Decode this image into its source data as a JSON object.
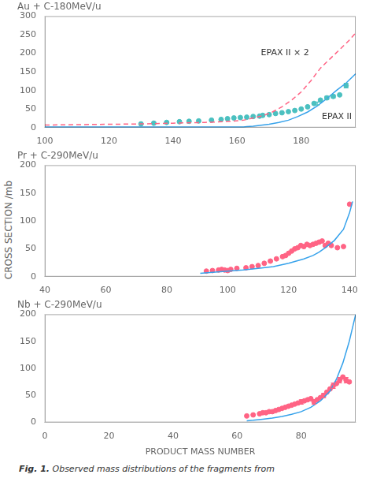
{
  "ylabel": "CROSS SECTION /mb",
  "caption": [
    "Fig. 1.",
    "Observed mass distributions of the fragments from"
  ],
  "chart_data": [
    {
      "type": "line",
      "title": "Au + C-180MeV/u",
      "grid": false,
      "xlim": [
        100,
        197
      ],
      "xticks": [
        100,
        120,
        140,
        160,
        180
      ],
      "ylim": [
        0,
        300
      ],
      "yticks": [
        0,
        50,
        100,
        150,
        200,
        250,
        300
      ],
      "annotations": [
        "EPAX II × 2",
        "EPAX II"
      ],
      "series": [
        {
          "type": "line",
          "line_style": "solid",
          "marker": "none",
          "x": [
            100,
            162,
            163,
            165,
            167,
            170,
            173,
            176,
            179,
            182,
            185,
            188,
            191,
            194,
            197
          ],
          "values": [
            1.5,
            1.8,
            2.5,
            4,
            6,
            9,
            14,
            20,
            30,
            42,
            58,
            78,
            100,
            120,
            145
          ]
        },
        {
          "type": "line",
          "line_style": "dashed",
          "marker": "none",
          "x": [
            100,
            110,
            120,
            130,
            140,
            150,
            158,
            162,
            165,
            168,
            171,
            174,
            177,
            180,
            183,
            186,
            189,
            192,
            195,
            197
          ],
          "values": [
            7,
            8,
            9,
            10,
            12,
            14,
            17,
            20,
            26,
            32,
            42,
            56,
            74,
            96,
            126,
            160,
            185,
            210,
            235,
            255
          ]
        },
        {
          "type": "scatter",
          "line_style": "none",
          "marker": "circle",
          "x": [
            130,
            134,
            138,
            142,
            145,
            148,
            152,
            155,
            157,
            159,
            161,
            163,
            165,
            167,
            168,
            170,
            172,
            174,
            176,
            178,
            180,
            182,
            184,
            186,
            188,
            190,
            192,
            194
          ],
          "values": [
            10,
            12,
            14,
            16,
            17,
            18,
            20,
            22,
            24,
            26,
            27,
            28,
            30,
            31,
            33,
            35,
            38,
            40,
            43,
            46,
            50,
            56,
            65,
            74,
            80,
            84,
            88,
            113
          ]
        }
      ],
      "error_bars": {
        "x": [
          185,
          188,
          190,
          194
        ],
        "y": [
          65,
          80,
          84,
          113
        ],
        "error": [
          4,
          4,
          4,
          6
        ]
      }
    },
    {
      "type": "line",
      "title": "Pr + C-290MeV/u",
      "grid": false,
      "xlim": [
        40,
        142
      ],
      "xticks": [
        40,
        60,
        80,
        100,
        120,
        140
      ],
      "ylim": [
        0,
        200
      ],
      "yticks": [
        0,
        50,
        100,
        150,
        200
      ],
      "series": [
        {
          "type": "line",
          "line_style": "solid",
          "marker": "none",
          "x": [
            91,
            95,
            100,
            105,
            110,
            115,
            120,
            125,
            128,
            130,
            132,
            135,
            138,
            140,
            141
          ],
          "values": [
            6,
            8,
            10,
            12,
            15,
            18,
            24,
            32,
            38,
            44,
            52,
            65,
            85,
            115,
            135
          ]
        },
        {
          "type": "scatter",
          "line_style": "none",
          "marker": "circle",
          "x": [
            93,
            95,
            97,
            98,
            99,
            100,
            101,
            103,
            106,
            108,
            110,
            112,
            114,
            116,
            118,
            119,
            120,
            121,
            122,
            123,
            124,
            125,
            126,
            127,
            128,
            129,
            130,
            131,
            132,
            133,
            134,
            136,
            138,
            140
          ],
          "values": [
            10,
            11,
            12,
            13,
            12,
            11,
            13,
            15,
            16,
            18,
            20,
            24,
            28,
            32,
            36,
            38,
            42,
            46,
            50,
            52,
            56,
            54,
            58,
            56,
            58,
            60,
            62,
            64,
            56,
            60,
            56,
            52,
            54,
            130
          ]
        }
      ]
    },
    {
      "type": "line",
      "title": "Nb + C-290MeV/u",
      "grid": false,
      "xlabel": "PRODUCT MASS NUMBER",
      "xlim": [
        0,
        97
      ],
      "xticks": [
        0,
        20,
        40,
        60,
        80
      ],
      "ylim": [
        0,
        200
      ],
      "yticks": [
        0,
        50,
        100,
        150,
        200
      ],
      "series": [
        {
          "type": "line",
          "line_style": "solid",
          "marker": "none",
          "x": [
            63,
            65,
            68,
            71,
            74,
            77,
            80,
            83,
            86,
            89,
            91,
            93,
            95,
            96,
            97
          ],
          "values": [
            3,
            4,
            6,
            8,
            11,
            15,
            20,
            28,
            40,
            58,
            80,
            110,
            150,
            175,
            200
          ]
        },
        {
          "type": "scatter",
          "line_style": "none",
          "marker": "circle",
          "x": [
            63,
            65,
            67,
            68,
            69,
            70,
            71,
            72,
            73,
            74,
            75,
            76,
            77,
            78,
            79,
            80,
            81,
            82,
            83,
            84,
            85,
            86,
            87,
            88,
            89,
            90,
            91,
            92,
            93,
            94,
            95
          ],
          "values": [
            12,
            14,
            16,
            18,
            18,
            20,
            20,
            22,
            24,
            26,
            28,
            30,
            32,
            34,
            36,
            38,
            40,
            42,
            44,
            38,
            42,
            46,
            50,
            56,
            62,
            68,
            72,
            78,
            84,
            78,
            75
          ]
        }
      ],
      "error_bars": {
        "x": [
          80,
          84,
          87,
          90,
          92,
          94
        ],
        "y": [
          38,
          38,
          50,
          68,
          78,
          78
        ],
        "error": [
          4,
          4,
          4,
          5,
          5,
          5
        ]
      }
    }
  ]
}
